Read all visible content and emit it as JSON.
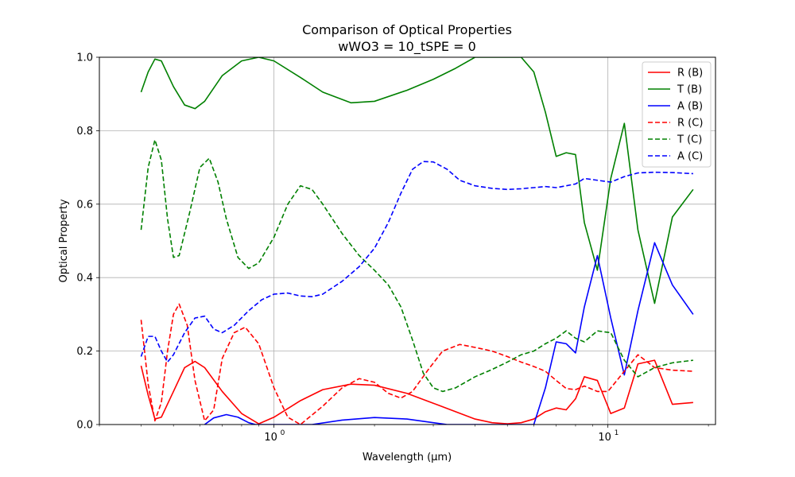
{
  "chart_data": {
    "type": "line",
    "title": "Comparison of Optical Properties",
    "subtitle": "wWO3 = 10_tSPE = 0",
    "xlabel": "Wavelength (µm)",
    "ylabel": "Optical Property",
    "xscale": "log",
    "xlim": [
      0.3,
      21
    ],
    "ylim": [
      0,
      1
    ],
    "grid": true,
    "legend_position": "top-right",
    "x_major_ticks": [
      {
        "value": 1,
        "label": "10",
        "sup": "0"
      },
      {
        "value": 10,
        "label": "10",
        "sup": "1"
      }
    ],
    "y_ticks": [
      {
        "value": 0.0,
        "label": "0.0"
      },
      {
        "value": 0.2,
        "label": "0.2"
      },
      {
        "value": 0.4,
        "label": "0.4"
      },
      {
        "value": 0.6,
        "label": "0.6"
      },
      {
        "value": 0.8,
        "label": "0.8"
      },
      {
        "value": 1.0,
        "label": "1.0"
      }
    ],
    "series": [
      {
        "name": "R (B)",
        "color": "#ff0000",
        "dash": "solid",
        "points": [
          [
            0.4,
            0.16
          ],
          [
            0.42,
            0.08
          ],
          [
            0.44,
            0.015
          ],
          [
            0.46,
            0.02
          ],
          [
            0.5,
            0.09
          ],
          [
            0.54,
            0.155
          ],
          [
            0.58,
            0.172
          ],
          [
            0.62,
            0.155
          ],
          [
            0.7,
            0.09
          ],
          [
            0.8,
            0.03
          ],
          [
            0.9,
            0.002
          ],
          [
            1.0,
            0.02
          ],
          [
            1.2,
            0.065
          ],
          [
            1.4,
            0.095
          ],
          [
            1.7,
            0.11
          ],
          [
            2.0,
            0.107
          ],
          [
            2.5,
            0.085
          ],
          [
            3.0,
            0.058
          ],
          [
            3.5,
            0.035
          ],
          [
            4.0,
            0.015
          ],
          [
            4.5,
            0.005
          ],
          [
            5.0,
            0.002
          ],
          [
            5.5,
            0.005
          ],
          [
            6.0,
            0.015
          ],
          [
            6.5,
            0.035
          ],
          [
            7.0,
            0.045
          ],
          [
            7.5,
            0.04
          ],
          [
            8.0,
            0.07
          ],
          [
            8.5,
            0.13
          ],
          [
            9.3,
            0.12
          ],
          [
            10.2,
            0.03
          ],
          [
            11.2,
            0.045
          ],
          [
            12.3,
            0.165
          ],
          [
            13.8,
            0.175
          ],
          [
            15.6,
            0.055
          ],
          [
            18.0,
            0.06
          ]
        ]
      },
      {
        "name": "T (B)",
        "color": "#008000",
        "dash": "solid",
        "points": [
          [
            0.4,
            0.905
          ],
          [
            0.42,
            0.96
          ],
          [
            0.44,
            0.995
          ],
          [
            0.46,
            0.99
          ],
          [
            0.5,
            0.92
          ],
          [
            0.54,
            0.87
          ],
          [
            0.58,
            0.86
          ],
          [
            0.62,
            0.88
          ],
          [
            0.7,
            0.95
          ],
          [
            0.8,
            0.99
          ],
          [
            0.9,
            1.0
          ],
          [
            1.0,
            0.99
          ],
          [
            1.2,
            0.945
          ],
          [
            1.4,
            0.905
          ],
          [
            1.7,
            0.876
          ],
          [
            2.0,
            0.88
          ],
          [
            2.5,
            0.91
          ],
          [
            3.0,
            0.94
          ],
          [
            3.5,
            0.97
          ],
          [
            4.0,
            1.0
          ],
          [
            4.5,
            1.0
          ],
          [
            5.0,
            1.0
          ],
          [
            5.5,
            1.0
          ],
          [
            6.0,
            0.96
          ],
          [
            6.5,
            0.85
          ],
          [
            7.0,
            0.73
          ],
          [
            7.5,
            0.74
          ],
          [
            8.0,
            0.735
          ],
          [
            8.5,
            0.55
          ],
          [
            9.3,
            0.42
          ],
          [
            10.2,
            0.67
          ],
          [
            11.2,
            0.82
          ],
          [
            12.3,
            0.53
          ],
          [
            13.8,
            0.33
          ],
          [
            15.6,
            0.565
          ],
          [
            18.0,
            0.64
          ]
        ]
      },
      {
        "name": "A (B)",
        "color": "#0000ff",
        "dash": "solid",
        "points": [
          [
            0.62,
            0.0
          ],
          [
            0.66,
            0.018
          ],
          [
            0.72,
            0.027
          ],
          [
            0.78,
            0.02
          ],
          [
            0.84,
            0.005
          ],
          [
            0.88,
            0.0
          ],
          [
            1.3,
            0.0
          ],
          [
            1.6,
            0.012
          ],
          [
            2.0,
            0.019
          ],
          [
            2.5,
            0.015
          ],
          [
            3.0,
            0.005
          ],
          [
            3.3,
            0.0
          ],
          [
            6.0,
            0.0
          ],
          [
            6.5,
            0.1
          ],
          [
            7.0,
            0.225
          ],
          [
            7.5,
            0.22
          ],
          [
            8.0,
            0.195
          ],
          [
            8.5,
            0.32
          ],
          [
            9.3,
            0.46
          ],
          [
            10.2,
            0.29
          ],
          [
            11.2,
            0.135
          ],
          [
            12.3,
            0.31
          ],
          [
            13.8,
            0.495
          ],
          [
            15.6,
            0.38
          ],
          [
            18.0,
            0.3
          ]
        ]
      },
      {
        "name": "R (C)",
        "color": "#ff0000",
        "dash": "dashed",
        "points": [
          [
            0.4,
            0.285
          ],
          [
            0.42,
            0.11
          ],
          [
            0.44,
            0.01
          ],
          [
            0.46,
            0.06
          ],
          [
            0.48,
            0.2
          ],
          [
            0.5,
            0.3
          ],
          [
            0.52,
            0.328
          ],
          [
            0.55,
            0.27
          ],
          [
            0.58,
            0.12
          ],
          [
            0.62,
            0.01
          ],
          [
            0.66,
            0.04
          ],
          [
            0.7,
            0.18
          ],
          [
            0.76,
            0.25
          ],
          [
            0.82,
            0.265
          ],
          [
            0.9,
            0.22
          ],
          [
            1.0,
            0.1
          ],
          [
            1.1,
            0.02
          ],
          [
            1.2,
            0.0
          ],
          [
            1.4,
            0.05
          ],
          [
            1.6,
            0.1
          ],
          [
            1.8,
            0.125
          ],
          [
            2.0,
            0.115
          ],
          [
            2.2,
            0.085
          ],
          [
            2.4,
            0.072
          ],
          [
            2.6,
            0.09
          ],
          [
            2.9,
            0.15
          ],
          [
            3.2,
            0.2
          ],
          [
            3.6,
            0.218
          ],
          [
            4.0,
            0.21
          ],
          [
            4.5,
            0.2
          ],
          [
            5.0,
            0.185
          ],
          [
            5.5,
            0.17
          ],
          [
            6.0,
            0.158
          ],
          [
            6.5,
            0.145
          ],
          [
            7.0,
            0.12
          ],
          [
            7.5,
            0.098
          ],
          [
            8.0,
            0.095
          ],
          [
            8.5,
            0.105
          ],
          [
            9.3,
            0.09
          ],
          [
            10.0,
            0.09
          ],
          [
            11.2,
            0.145
          ],
          [
            12.3,
            0.19
          ],
          [
            13.8,
            0.155
          ],
          [
            15.6,
            0.148
          ],
          [
            18.0,
            0.145
          ]
        ]
      },
      {
        "name": "T (C)",
        "color": "#008000",
        "dash": "dashed",
        "points": [
          [
            0.4,
            0.53
          ],
          [
            0.42,
            0.7
          ],
          [
            0.44,
            0.775
          ],
          [
            0.46,
            0.72
          ],
          [
            0.48,
            0.56
          ],
          [
            0.5,
            0.455
          ],
          [
            0.52,
            0.46
          ],
          [
            0.56,
            0.58
          ],
          [
            0.6,
            0.7
          ],
          [
            0.64,
            0.725
          ],
          [
            0.68,
            0.66
          ],
          [
            0.72,
            0.56
          ],
          [
            0.78,
            0.455
          ],
          [
            0.84,
            0.425
          ],
          [
            0.9,
            0.44
          ],
          [
            1.0,
            0.51
          ],
          [
            1.1,
            0.6
          ],
          [
            1.2,
            0.65
          ],
          [
            1.3,
            0.64
          ],
          [
            1.4,
            0.6
          ],
          [
            1.6,
            0.52
          ],
          [
            1.8,
            0.46
          ],
          [
            2.0,
            0.42
          ],
          [
            2.2,
            0.38
          ],
          [
            2.4,
            0.32
          ],
          [
            2.6,
            0.23
          ],
          [
            2.8,
            0.14
          ],
          [
            3.0,
            0.1
          ],
          [
            3.2,
            0.09
          ],
          [
            3.5,
            0.1
          ],
          [
            4.0,
            0.13
          ],
          [
            4.5,
            0.15
          ],
          [
            5.0,
            0.17
          ],
          [
            5.5,
            0.19
          ],
          [
            6.0,
            0.2
          ],
          [
            6.5,
            0.22
          ],
          [
            7.0,
            0.235
          ],
          [
            7.5,
            0.255
          ],
          [
            8.0,
            0.235
          ],
          [
            8.5,
            0.225
          ],
          [
            9.3,
            0.255
          ],
          [
            10.2,
            0.25
          ],
          [
            11.2,
            0.175
          ],
          [
            12.3,
            0.13
          ],
          [
            13.8,
            0.155
          ],
          [
            15.6,
            0.168
          ],
          [
            18.0,
            0.175
          ]
        ]
      },
      {
        "name": "A (C)",
        "color": "#0000ff",
        "dash": "dashed",
        "points": [
          [
            0.4,
            0.185
          ],
          [
            0.42,
            0.24
          ],
          [
            0.44,
            0.24
          ],
          [
            0.46,
            0.2
          ],
          [
            0.48,
            0.17
          ],
          [
            0.5,
            0.19
          ],
          [
            0.54,
            0.25
          ],
          [
            0.58,
            0.29
          ],
          [
            0.62,
            0.295
          ],
          [
            0.66,
            0.26
          ],
          [
            0.7,
            0.25
          ],
          [
            0.76,
            0.27
          ],
          [
            0.84,
            0.31
          ],
          [
            0.92,
            0.34
          ],
          [
            1.0,
            0.355
          ],
          [
            1.1,
            0.358
          ],
          [
            1.2,
            0.35
          ],
          [
            1.3,
            0.348
          ],
          [
            1.4,
            0.355
          ],
          [
            1.6,
            0.39
          ],
          [
            1.8,
            0.43
          ],
          [
            2.0,
            0.48
          ],
          [
            2.2,
            0.55
          ],
          [
            2.4,
            0.63
          ],
          [
            2.6,
            0.695
          ],
          [
            2.8,
            0.716
          ],
          [
            3.0,
            0.715
          ],
          [
            3.3,
            0.695
          ],
          [
            3.6,
            0.665
          ],
          [
            4.0,
            0.65
          ],
          [
            4.5,
            0.643
          ],
          [
            5.0,
            0.64
          ],
          [
            5.5,
            0.642
          ],
          [
            6.0,
            0.645
          ],
          [
            6.5,
            0.648
          ],
          [
            7.0,
            0.645
          ],
          [
            7.5,
            0.65
          ],
          [
            8.0,
            0.655
          ],
          [
            8.5,
            0.67
          ],
          [
            9.3,
            0.665
          ],
          [
            10.2,
            0.66
          ],
          [
            11.2,
            0.675
          ],
          [
            12.3,
            0.685
          ],
          [
            13.8,
            0.687
          ],
          [
            15.6,
            0.686
          ],
          [
            18.0,
            0.683
          ]
        ]
      }
    ]
  }
}
